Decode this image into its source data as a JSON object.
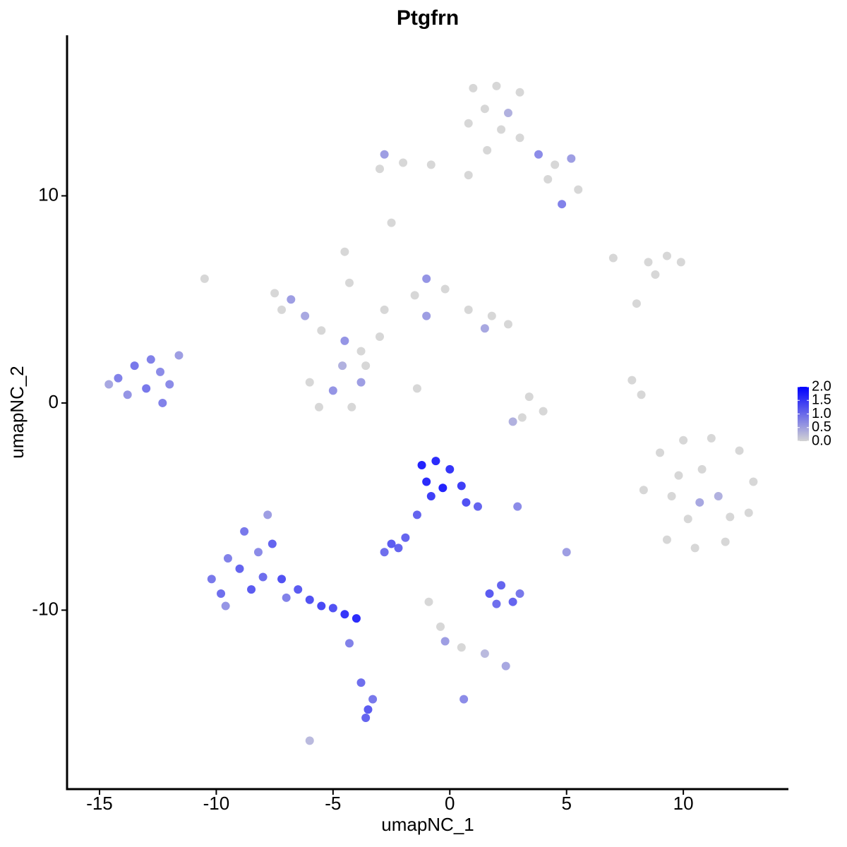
{
  "chart_data": {
    "type": "scatter",
    "title": "Ptgfrn",
    "xlabel": "umapNC_1",
    "ylabel": "umapNC_2",
    "xlim": [
      -16.39,
      14.5
    ],
    "ylim": [
      -18.64,
      17.75
    ],
    "xticks": [
      -15,
      -10,
      -5,
      0,
      5,
      10
    ],
    "yticks": [
      -10,
      0,
      10
    ],
    "low_color": "#d3d3d3",
    "high_color": "#0000ff",
    "clim": [
      0,
      2
    ],
    "cticks": [
      {
        "value": 2,
        "label": "2.0"
      },
      {
        "value": 1.5,
        "label": "1.5"
      },
      {
        "value": 1,
        "label": "1.0"
      },
      {
        "value": 0.5,
        "label": "0.5"
      },
      {
        "value": 0,
        "label": "0.0"
      }
    ],
    "x": [
      1.0,
      2.0,
      3.0,
      1.5,
      2.5,
      0.8,
      2.2,
      3.0,
      1.6,
      3.8,
      4.5,
      5.2,
      4.2,
      5.5,
      4.8,
      -0.8,
      -2.0,
      -3.0,
      -2.8,
      0.8,
      -2.5,
      -7.5,
      -6.8,
      -7.2,
      -6.2,
      -5.5,
      -4.5,
      -3.8,
      -3.0,
      -2.8,
      -1.5,
      -1.0,
      -0.2,
      0.8,
      1.8,
      2.5,
      1.5,
      -1.0,
      -4.5,
      -4.3,
      -6.0,
      -5.0,
      -4.2,
      -3.8,
      -5.6,
      -4.6,
      -3.6,
      -1.4,
      -10.5,
      -14.2,
      -13.5,
      -13.0,
      -12.4,
      -13.8,
      -12.8,
      -12.0,
      -11.6,
      -12.3,
      -14.6,
      -10.2,
      -9.8,
      -9.5,
      -9.0,
      -8.8,
      -8.5,
      -8.2,
      -8.0,
      -7.6,
      -7.2,
      -7.0,
      -6.5,
      -6.0,
      -5.5,
      -5.0,
      -4.5,
      -4.0,
      -9.6,
      -7.8,
      -4.3,
      -3.8,
      -3.5,
      -3.6,
      -3.3,
      -1.2,
      -0.6,
      0.0,
      -1.0,
      -0.3,
      0.5,
      -0.8,
      0.7,
      1.2,
      -1.4,
      -1.9,
      -2.5,
      -2.8,
      -2.2,
      1.7,
      2.2,
      2.7,
      2.0,
      3.0,
      -0.9,
      -0.4,
      -0.2,
      0.5,
      1.5,
      2.4,
      0.6,
      -6.0,
      3.1,
      2.7,
      3.4,
      4.0,
      5.0,
      2.9,
      7.0,
      8.5,
      9.3,
      9.9,
      8.8,
      8.0,
      7.8,
      8.2,
      8.3,
      9.0,
      10.0,
      11.2,
      12.4,
      13.0,
      12.8,
      11.8,
      10.5,
      9.3,
      9.5,
      10.8,
      11.5,
      10.2,
      12.0,
      9.8,
      10.7
    ],
    "y": [
      15.2,
      15.3,
      15.0,
      14.2,
      14.0,
      13.5,
      13.2,
      12.8,
      12.2,
      12.0,
      11.5,
      11.8,
      10.8,
      10.3,
      9.6,
      11.5,
      11.6,
      11.3,
      12.0,
      11.0,
      8.7,
      5.3,
      5.0,
      4.5,
      4.2,
      3.5,
      3.0,
      2.5,
      3.2,
      4.5,
      5.2,
      4.2,
      5.5,
      4.5,
      4.2,
      3.8,
      3.6,
      6.0,
      7.3,
      5.8,
      1.0,
      0.6,
      -0.2,
      1.0,
      -0.2,
      1.8,
      1.8,
      0.7,
      6.0,
      1.2,
      1.8,
      0.7,
      1.5,
      0.4,
      2.1,
      0.9,
      2.3,
      0.0,
      0.9,
      -8.5,
      -9.2,
      -7.5,
      -8.0,
      -6.2,
      -9.0,
      -7.2,
      -8.4,
      -6.8,
      -8.5,
      -9.4,
      -9.0,
      -9.5,
      -9.8,
      -9.9,
      -10.2,
      -10.4,
      -9.8,
      -5.4,
      -11.6,
      -13.5,
      -14.8,
      -15.2,
      -14.3,
      -3.0,
      -2.8,
      -3.2,
      -3.8,
      -4.1,
      -4.0,
      -4.5,
      -4.8,
      -5.0,
      -5.4,
      -6.5,
      -6.8,
      -7.2,
      -7.0,
      -9.2,
      -8.8,
      -9.6,
      -9.7,
      -9.2,
      -9.6,
      -10.8,
      -11.5,
      -11.8,
      -12.1,
      -12.7,
      -14.3,
      -16.3,
      -0.7,
      -0.9,
      0.3,
      -0.4,
      -7.2,
      -5.0,
      7.0,
      6.8,
      7.1,
      6.8,
      6.2,
      4.8,
      1.1,
      0.4,
      -4.2,
      -2.4,
      -1.8,
      -1.7,
      -2.3,
      -3.8,
      -5.3,
      -6.7,
      -7.0,
      -6.6,
      -4.5,
      -3.2,
      -4.5,
      -5.6,
      -5.5,
      -3.5,
      -4.8
    ],
    "expression": [
      0,
      0,
      0,
      0,
      0.4,
      0,
      0,
      0,
      0,
      0.8,
      0,
      0.6,
      0,
      0,
      0.9,
      0,
      0,
      0,
      0.6,
      0,
      0,
      0,
      0.6,
      0,
      0.5,
      0,
      0.7,
      0,
      0,
      0,
      0,
      0.6,
      0,
      0,
      0,
      0,
      0.5,
      0.7,
      0,
      0,
      0,
      0.7,
      0,
      0.6,
      0,
      0.4,
      0,
      0,
      0,
      0.9,
      1.0,
      1.0,
      0.8,
      0.7,
      0.9,
      0.8,
      0.6,
      0.9,
      0.5,
      1.0,
      1.1,
      0.9,
      1.2,
      1.0,
      1.3,
      0.8,
      1.1,
      1.2,
      1.4,
      0.9,
      1.3,
      1.4,
      1.5,
      1.4,
      1.7,
      1.8,
      0.7,
      0.6,
      0.9,
      1.1,
      1.3,
      1.2,
      1.0,
      1.9,
      1.8,
      1.7,
      1.8,
      1.9,
      1.6,
      1.6,
      1.4,
      1.2,
      1.2,
      1.2,
      1.3,
      1.1,
      1.2,
      1.3,
      1.2,
      1.2,
      1.1,
      1.0,
      0,
      0,
      0.6,
      0,
      0.3,
      0.5,
      0.8,
      0.3,
      0,
      0.4,
      0,
      0,
      0.6,
      0.8,
      0,
      0,
      0,
      0,
      0,
      0,
      0,
      0,
      0,
      0,
      0,
      0,
      0,
      0,
      0,
      0,
      0,
      0,
      0,
      0,
      0.4,
      0,
      0,
      0,
      0.5
    ]
  }
}
